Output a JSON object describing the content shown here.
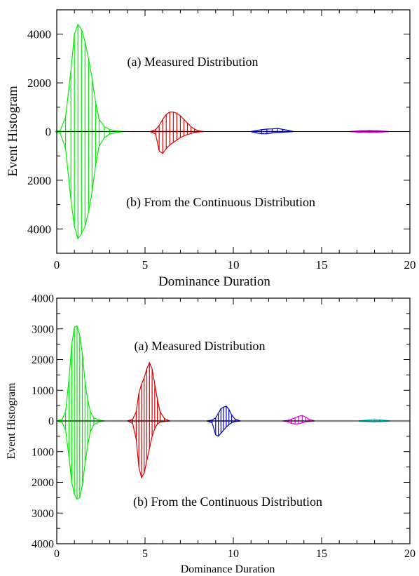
{
  "chart_data": [
    {
      "type": "bar",
      "panel": "top",
      "xlabel": "Dominance Duration",
      "ylabel": "Event Histogram",
      "xlim": [
        0,
        20
      ],
      "ylim": [
        -5000,
        5000
      ],
      "x_ticks": [
        0,
        5,
        10,
        15,
        20
      ],
      "x_tick_labels": [
        "0",
        "5",
        "10",
        "15",
        "20"
      ],
      "y_ticks": [
        4000,
        2000,
        0,
        -2000,
        -4000
      ],
      "y_tick_labels": [
        "4000",
        "2000",
        "0",
        "2000",
        "4000"
      ],
      "annotations": [
        "(a) Measured Distribution",
        "(b) From the Continuous Distribution"
      ],
      "grid": false,
      "series": [
        {
          "color": "#00ee00",
          "bins": [
            {
              "x": 0.2,
              "up": 50,
              "down": 80
            },
            {
              "x": 0.5,
              "up": 600,
              "down": 700
            },
            {
              "x": 0.8,
              "up": 2500,
              "down": 2800
            },
            {
              "x": 1.0,
              "up": 4000,
              "down": 3900
            },
            {
              "x": 1.2,
              "up": 4400,
              "down": 4400
            },
            {
              "x": 1.4,
              "up": 4200,
              "down": 4200
            },
            {
              "x": 1.6,
              "up": 3700,
              "down": 3900
            },
            {
              "x": 1.8,
              "up": 3000,
              "down": 3300
            },
            {
              "x": 2.0,
              "up": 2200,
              "down": 2500
            },
            {
              "x": 2.2,
              "up": 1200,
              "down": 1400
            },
            {
              "x": 2.4,
              "up": 500,
              "down": 600
            },
            {
              "x": 2.7,
              "up": 200,
              "down": 250
            },
            {
              "x": 3.0,
              "up": 80,
              "down": 100
            },
            {
              "x": 3.5,
              "up": 20,
              "down": 30
            }
          ]
        },
        {
          "color": "#dd0000",
          "bins": [
            {
              "x": 5.6,
              "up": 80,
              "down": 100
            },
            {
              "x": 5.8,
              "up": 250,
              "down": 800
            },
            {
              "x": 6.0,
              "up": 500,
              "down": 900
            },
            {
              "x": 6.2,
              "up": 700,
              "down": 700
            },
            {
              "x": 6.4,
              "up": 800,
              "down": 550
            },
            {
              "x": 6.6,
              "up": 800,
              "down": 450
            },
            {
              "x": 6.8,
              "up": 750,
              "down": 350
            },
            {
              "x": 7.0,
              "up": 650,
              "down": 250
            },
            {
              "x": 7.2,
              "up": 500,
              "down": 180
            },
            {
              "x": 7.4,
              "up": 350,
              "down": 120
            },
            {
              "x": 7.6,
              "up": 200,
              "down": 80
            },
            {
              "x": 7.8,
              "up": 100,
              "down": 40
            },
            {
              "x": 8.0,
              "up": 40,
              "down": 20
            }
          ]
        },
        {
          "color": "#0000cc",
          "bins": [
            {
              "x": 11.3,
              "up": 40,
              "down": 60
            },
            {
              "x": 11.6,
              "up": 80,
              "down": 90
            },
            {
              "x": 11.9,
              "up": 100,
              "down": 90
            },
            {
              "x": 12.2,
              "up": 110,
              "down": 60
            },
            {
              "x": 12.5,
              "up": 130,
              "down": 40
            },
            {
              "x": 12.8,
              "up": 90,
              "down": 30
            },
            {
              "x": 13.1,
              "up": 50,
              "down": 20
            }
          ]
        },
        {
          "color": "#cc00cc",
          "bins": [
            {
              "x": 16.9,
              "up": 20,
              "down": 20
            },
            {
              "x": 17.3,
              "up": 40,
              "down": 30
            },
            {
              "x": 17.7,
              "up": 50,
              "down": 40
            },
            {
              "x": 18.1,
              "up": 40,
              "down": 30
            },
            {
              "x": 18.5,
              "up": 20,
              "down": 20
            }
          ]
        }
      ]
    },
    {
      "type": "bar",
      "panel": "bottom",
      "xlabel": "Dominance Duration",
      "ylabel": "Event Histogram",
      "xlim": [
        0,
        20
      ],
      "ylim": [
        -4000,
        4000
      ],
      "x_ticks": [
        0,
        5,
        10,
        15,
        20
      ],
      "x_tick_labels": [
        "0",
        "5",
        "10",
        "15",
        "20"
      ],
      "y_ticks": [
        4000,
        3000,
        2000,
        1000,
        0,
        -1000,
        -2000,
        -3000,
        -4000
      ],
      "y_tick_labels": [
        "4000",
        "3000",
        "2000",
        "1000",
        "0",
        "1000",
        "2000",
        "3000",
        "4000"
      ],
      "annotations": [
        "(a) Measured Distribution",
        "(b) From the Continuous Distribution"
      ],
      "grid": false,
      "series": [
        {
          "color": "#00ee00",
          "bins": [
            {
              "x": 0.3,
              "up": 50,
              "down": 50
            },
            {
              "x": 0.5,
              "up": 300,
              "down": 300
            },
            {
              "x": 0.7,
              "up": 1400,
              "down": 1200
            },
            {
              "x": 0.85,
              "up": 2500,
              "down": 2000
            },
            {
              "x": 1.0,
              "up": 3050,
              "down": 2400
            },
            {
              "x": 1.15,
              "up": 3100,
              "down": 2550
            },
            {
              "x": 1.3,
              "up": 2800,
              "down": 2500
            },
            {
              "x": 1.45,
              "up": 2200,
              "down": 2100
            },
            {
              "x": 1.6,
              "up": 1300,
              "down": 1400
            },
            {
              "x": 1.75,
              "up": 700,
              "down": 800
            },
            {
              "x": 1.9,
              "up": 300,
              "down": 350
            },
            {
              "x": 2.1,
              "up": 100,
              "down": 120
            },
            {
              "x": 2.4,
              "up": 30,
              "down": 30
            }
          ]
        },
        {
          "color": "#dd0000",
          "bins": [
            {
              "x": 4.3,
              "up": 50,
              "down": 80
            },
            {
              "x": 4.5,
              "up": 300,
              "down": 600
            },
            {
              "x": 4.65,
              "up": 900,
              "down": 1500
            },
            {
              "x": 4.8,
              "up": 1200,
              "down": 1850
            },
            {
              "x": 4.95,
              "up": 1400,
              "down": 1700
            },
            {
              "x": 5.1,
              "up": 1700,
              "down": 1300
            },
            {
              "x": 5.25,
              "up": 1900,
              "down": 900
            },
            {
              "x": 5.4,
              "up": 1700,
              "down": 500
            },
            {
              "x": 5.55,
              "up": 1200,
              "down": 250
            },
            {
              "x": 5.7,
              "up": 700,
              "down": 100
            },
            {
              "x": 5.85,
              "up": 300,
              "down": 40
            },
            {
              "x": 6.1,
              "up": 80,
              "down": 20
            }
          ]
        },
        {
          "color": "#0000cc",
          "bins": [
            {
              "x": 8.8,
              "up": 30,
              "down": 60
            },
            {
              "x": 9.0,
              "up": 100,
              "down": 450
            },
            {
              "x": 9.15,
              "up": 250,
              "down": 500
            },
            {
              "x": 9.3,
              "up": 400,
              "down": 400
            },
            {
              "x": 9.45,
              "up": 450,
              "down": 300
            },
            {
              "x": 9.6,
              "up": 480,
              "down": 200
            },
            {
              "x": 9.75,
              "up": 380,
              "down": 120
            },
            {
              "x": 9.9,
              "up": 200,
              "down": 60
            },
            {
              "x": 10.1,
              "up": 60,
              "down": 20
            }
          ]
        },
        {
          "color": "#cc00cc",
          "bins": [
            {
              "x": 13.1,
              "up": 20,
              "down": 30
            },
            {
              "x": 13.3,
              "up": 60,
              "down": 80
            },
            {
              "x": 13.5,
              "up": 100,
              "down": 100
            },
            {
              "x": 13.7,
              "up": 150,
              "down": 90
            },
            {
              "x": 13.9,
              "up": 180,
              "down": 60
            },
            {
              "x": 14.1,
              "up": 120,
              "down": 30
            },
            {
              "x": 14.3,
              "up": 50,
              "down": 20
            }
          ]
        },
        {
          "color": "#00dddd",
          "bins": [
            {
              "x": 17.4,
              "up": 20,
              "down": 20
            },
            {
              "x": 17.7,
              "up": 40,
              "down": 30
            },
            {
              "x": 18.0,
              "up": 60,
              "down": 40
            },
            {
              "x": 18.3,
              "up": 50,
              "down": 30
            },
            {
              "x": 18.6,
              "up": 20,
              "down": 20
            }
          ]
        }
      ]
    }
  ]
}
